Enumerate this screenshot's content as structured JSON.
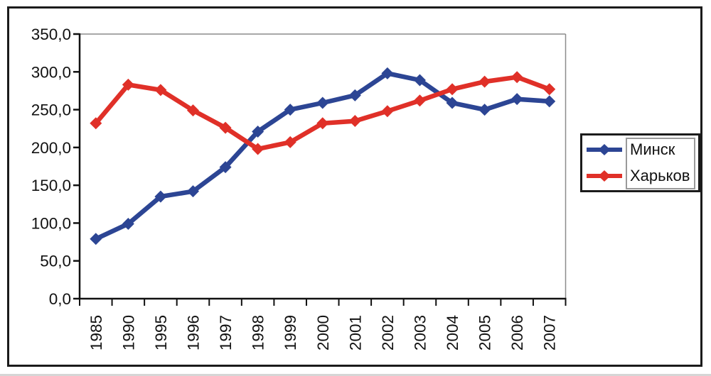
{
  "window": {
    "background": "#ffffff",
    "figure_border_color": "#1b1b1b"
  },
  "chart_data": {
    "type": "line",
    "title": "",
    "xlabel": "",
    "ylabel": "",
    "categories": [
      "1985",
      "1990",
      "1995",
      "1996",
      "1997",
      "1998",
      "1999",
      "2000",
      "2001",
      "2002",
      "2003",
      "2004",
      "2005",
      "2006",
      "2007"
    ],
    "series": [
      {
        "name": "Минск",
        "color": "#2c4594",
        "values": [
          79,
          99,
          135,
          142,
          174,
          221,
          250,
          259,
          269,
          298,
          289,
          259,
          250,
          264,
          261
        ]
      },
      {
        "name": "Харьков",
        "color": "#e03028",
        "values": [
          232,
          283,
          276,
          249,
          226,
          198,
          207,
          232,
          235,
          248,
          262,
          277,
          287,
          293,
          277
        ]
      }
    ],
    "ylim": [
      0,
      350
    ],
    "ytick_step": 50,
    "ytick_labels": [
      "0,0",
      "50,0",
      "100,0",
      "150,0",
      "200,0",
      "250,0",
      "300,0",
      "350,0"
    ],
    "x_tick_label_rotation": -90,
    "grid": false,
    "marker_shape": "diamond",
    "legend_position": "right",
    "axis_color": "#111111",
    "plot_frame_color": "#8c8c8c"
  }
}
